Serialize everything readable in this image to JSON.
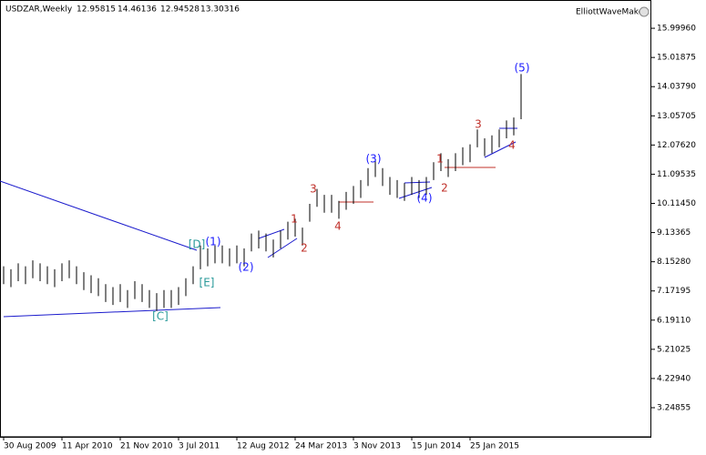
{
  "chart_data": {
    "type": "ohlc",
    "title": "USDZAR,Weekly",
    "header_values": [
      12.95815,
      14.46136,
      12.94528,
      13.30316
    ],
    "indicator": "ElliottWaveMaker",
    "categories": [
      "30 Aug 2009",
      null,
      null,
      null,
      null,
      null,
      null,
      null,
      "11 Apr 2010",
      null,
      null,
      null,
      null,
      null,
      null,
      null,
      "21 Nov 2010",
      null,
      null,
      null,
      null,
      null,
      null,
      null,
      "3 Jul 2011",
      null,
      null,
      null,
      null,
      null,
      null,
      null,
      "12 Aug 2012",
      null,
      null,
      null,
      null,
      null,
      null,
      null,
      "24 Mar 2013",
      null,
      null,
      null,
      null,
      null,
      null,
      null,
      "3 Nov 2013",
      null,
      null,
      null,
      null,
      null,
      null,
      null,
      "15 Jun 2014",
      null,
      null,
      null,
      null,
      null,
      null,
      null,
      "25 Jan 2015",
      null,
      null,
      null,
      null,
      null,
      null,
      null
    ],
    "high": [
      8.0,
      7.9,
      8.1,
      8.0,
      8.2,
      8.1,
      8.0,
      7.9,
      8.1,
      8.2,
      8.0,
      7.8,
      7.7,
      7.6,
      7.4,
      7.3,
      7.4,
      7.2,
      7.5,
      7.4,
      7.2,
      7.1,
      7.2,
      7.2,
      7.3,
      7.6,
      8.0,
      8.7,
      8.6,
      8.7,
      8.7,
      8.6,
      8.7,
      8.6,
      9.1,
      9.2,
      9.1,
      8.9,
      9.2,
      9.5,
      9.6,
      9.3,
      10.1,
      10.6,
      10.4,
      10.4,
      10.2,
      10.5,
      10.7,
      10.9,
      11.3,
      11.6,
      11.3,
      11.0,
      10.9,
      10.8,
      11.0,
      10.9,
      11.0,
      11.5,
      11.8,
      11.6,
      11.8,
      12.0,
      12.1,
      12.6,
      12.3,
      12.4,
      12.6,
      12.9,
      13.0,
      14.46136
    ],
    "low": [
      7.4,
      7.3,
      7.5,
      7.4,
      7.6,
      7.5,
      7.4,
      7.3,
      7.5,
      7.6,
      7.4,
      7.2,
      7.1,
      7.0,
      6.8,
      6.7,
      6.8,
      6.6,
      6.9,
      6.8,
      6.6,
      6.5,
      6.6,
      6.6,
      6.7,
      7.0,
      7.4,
      7.9,
      8.0,
      8.1,
      8.1,
      8.0,
      8.1,
      8.0,
      8.5,
      8.6,
      8.5,
      8.3,
      8.6,
      8.9,
      9.0,
      8.7,
      9.5,
      10.0,
      9.8,
      9.8,
      9.6,
      9.9,
      10.1,
      10.3,
      10.7,
      11.0,
      10.7,
      10.4,
      10.3,
      10.2,
      10.4,
      10.3,
      10.4,
      10.9,
      11.2,
      11.0,
      11.2,
      11.4,
      11.5,
      12.0,
      11.7,
      11.8,
      12.0,
      12.3,
      12.4,
      12.94528
    ],
    "color": "#000000",
    "ylim": [
      2.27,
      16.95
    ],
    "yticks": [
      {
        "value": 15.9996,
        "label": "15.99960"
      },
      {
        "value": 15.01875,
        "label": "15.01875"
      },
      {
        "value": 14.0379,
        "label": "14.03790"
      },
      {
        "value": 13.05705,
        "label": "13.05705"
      },
      {
        "value": 12.0762,
        "label": "12.07620"
      },
      {
        "value": 11.09535,
        "label": "11.09535"
      },
      {
        "value": 10.1145,
        "label": "10.11450"
      },
      {
        "value": 9.13365,
        "label": "9.13365"
      },
      {
        "value": 8.1528,
        "label": "8.15280"
      },
      {
        "value": 7.17195,
        "label": "7.17195"
      },
      {
        "value": 6.1911,
        "label": "6.19110"
      },
      {
        "value": 5.21025,
        "label": "5.21025"
      },
      {
        "value": 4.2294,
        "label": "4.22940"
      },
      {
        "value": 3.24855,
        "label": "3.24855"
      }
    ],
    "annotations": [
      {
        "text": "(5)",
        "color": "#1a1aff"
      },
      {
        "text": "3",
        "color": "#c0302a"
      },
      {
        "text": "4",
        "color": "#c0302a"
      },
      {
        "text": "1",
        "color": "#c0302a"
      },
      {
        "text": "2",
        "color": "#c0302a"
      },
      {
        "text": "(3)",
        "color": "#1a1aff"
      },
      {
        "text": "(4)",
        "color": "#1a1aff"
      },
      {
        "text": "3",
        "color": "#c0302a"
      },
      {
        "text": "4",
        "color": "#c0302a"
      },
      {
        "text": "1",
        "color": "#c0302a"
      },
      {
        "text": "2",
        "color": "#c0302a"
      },
      {
        "text": "(1)",
        "color": "#1a1aff"
      },
      {
        "text": "(2)",
        "color": "#1a1aff"
      },
      {
        "text": "[D]",
        "color": "#2a9a9a"
      },
      {
        "text": "[E]",
        "color": "#2a9a9a"
      },
      {
        "text": "[C]",
        "color": "#2a9a9a"
      }
    ]
  }
}
